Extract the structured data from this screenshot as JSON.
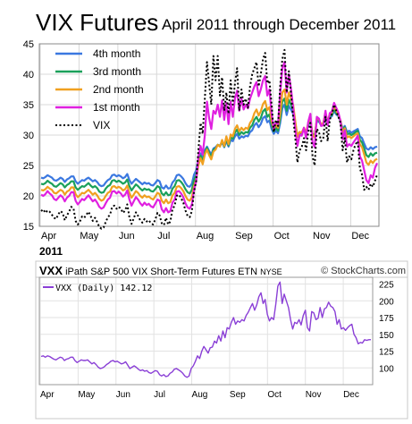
{
  "header": {
    "title": "VIX Futures",
    "subtitle": "April 2011 through December 2011"
  },
  "colors": {
    "fourth": "#3b78e0",
    "third": "#1aa05a",
    "second": "#f0a020",
    "first": "#e020e0",
    "vix": "#000000",
    "vxx": "#8a3fd6",
    "panel_border": "#c8c8c8"
  },
  "chart_data": [
    {
      "type": "line",
      "x_ticks": [
        "Apr",
        "May",
        "Jun",
        "Jul",
        "Aug",
        "Sep",
        "Oct",
        "Nov",
        "Dec"
      ],
      "year_label": "2011",
      "ylim": [
        15,
        45
      ],
      "y_ticks": [
        15,
        20,
        25,
        30,
        35,
        40,
        45
      ],
      "grid": true,
      "legend_position": "top-left",
      "series": [
        {
          "name": "4th month",
          "style": "solid",
          "values": [
            23.0,
            22.9,
            23.1,
            23.4,
            23.2,
            23.0,
            22.6,
            22.5,
            22.7,
            23.0,
            22.8,
            22.3,
            22.7,
            22.9,
            23.2,
            23.2,
            22.4,
            22.0,
            22.3,
            22.6,
            22.5,
            22.8,
            23.0,
            22.7,
            22.4,
            22.6,
            22.3,
            21.8,
            21.6,
            21.7,
            22.2,
            22.6,
            22.8,
            23.4,
            23.5,
            23.2,
            23.4,
            23.2,
            22.9,
            23.1,
            23.6,
            22.6,
            22.0,
            22.4,
            22.8,
            22.5,
            22.2,
            21.9,
            22.2,
            22.0,
            22.1,
            21.8,
            21.7,
            22.1,
            22.6,
            22.4,
            21.4,
            21.2,
            21.7,
            21.2,
            21.3,
            22.2,
            22.6,
            23.4,
            23.5,
            23.2,
            22.8,
            22.1,
            21.6,
            21.5,
            22.0,
            23.5,
            24.2,
            26.0,
            27.0,
            26.2,
            27.5,
            28.1,
            27.4,
            26.8,
            27.8,
            28.0,
            28.4,
            28.2,
            28.8,
            28.0,
            29.0,
            28.1,
            29.2,
            29.0,
            29.8,
            30.2,
            29.4,
            29.8,
            29.6,
            29.9,
            29.8,
            30.5,
            30.8,
            31.6,
            32.0,
            31.3,
            31.8,
            32.8,
            33.1,
            32.1,
            32.4,
            31.0,
            30.2,
            30.7,
            30.3,
            32.0,
            34.4,
            35.0,
            33.3,
            34.8,
            34.2,
            33.5,
            31.5,
            29.8,
            30.4,
            30.2,
            31.0,
            30.3,
            31.6,
            32.3,
            30.2,
            30.0,
            32.3,
            32.2,
            31.6,
            31.8,
            33.0,
            32.0,
            32.9,
            33.1,
            34.0,
            33.4,
            33.1,
            32.3,
            31.0,
            31.5,
            30.5,
            30.7,
            30.4,
            30.6,
            30.8,
            31.0,
            29.8,
            29.5,
            28.6,
            27.8,
            27.6,
            28.0,
            27.7,
            28.0,
            28.1
          ]
        },
        {
          "name": "3rd month",
          "style": "solid",
          "values": [
            22.0,
            21.9,
            22.1,
            22.5,
            22.2,
            22.0,
            21.6,
            21.5,
            21.8,
            22.1,
            21.9,
            21.4,
            21.8,
            22.0,
            22.4,
            22.4,
            21.4,
            21.0,
            21.3,
            21.6,
            21.5,
            21.8,
            22.1,
            21.7,
            21.4,
            21.6,
            21.3,
            20.7,
            20.5,
            20.6,
            21.2,
            21.6,
            21.8,
            22.5,
            22.6,
            22.3,
            22.5,
            22.3,
            22.0,
            22.2,
            22.7,
            21.6,
            20.9,
            21.4,
            21.9,
            21.6,
            21.2,
            20.9,
            21.2,
            21.0,
            21.1,
            20.8,
            20.7,
            21.1,
            21.6,
            21.4,
            20.4,
            20.1,
            20.6,
            20.1,
            20.2,
            21.2,
            21.6,
            22.5,
            22.6,
            22.3,
            21.8,
            21.1,
            20.6,
            20.4,
            21.0,
            22.6,
            23.4,
            25.5,
            26.6,
            25.7,
            27.2,
            27.9,
            27.1,
            26.4,
            27.6,
            27.8,
            28.4,
            28.2,
            29.0,
            28.1,
            29.4,
            28.3,
            29.6,
            29.4,
            30.4,
            30.9,
            30.0,
            30.5,
            30.2,
            30.5,
            30.4,
            31.2,
            31.6,
            32.5,
            33.0,
            32.2,
            32.8,
            33.9,
            34.3,
            33.0,
            33.4,
            31.6,
            30.6,
            31.2,
            30.7,
            32.7,
            35.5,
            36.0,
            34.0,
            35.8,
            35.0,
            34.2,
            31.9,
            29.8,
            30.5,
            30.3,
            31.1,
            30.4,
            31.8,
            32.6,
            30.1,
            29.8,
            32.5,
            32.4,
            31.6,
            31.9,
            33.3,
            32.0,
            33.1,
            33.3,
            34.3,
            33.6,
            33.2,
            32.3,
            30.7,
            31.3,
            30.1,
            30.3,
            30.0,
            30.2,
            30.5,
            30.7,
            29.2,
            28.8,
            27.8,
            26.7,
            26.4,
            27.0,
            26.6,
            27.0,
            27.1
          ]
        },
        {
          "name": "2nd month",
          "style": "solid",
          "values": [
            21.0,
            20.9,
            21.1,
            21.5,
            21.2,
            21.0,
            20.5,
            20.4,
            20.7,
            21.0,
            20.8,
            20.2,
            20.7,
            20.9,
            21.4,
            21.4,
            20.3,
            19.8,
            20.1,
            20.5,
            20.4,
            20.7,
            21.0,
            20.6,
            20.2,
            20.5,
            20.1,
            19.5,
            19.2,
            19.4,
            20.0,
            20.5,
            20.7,
            21.5,
            21.6,
            21.3,
            21.5,
            21.3,
            20.9,
            21.1,
            21.7,
            20.5,
            19.7,
            20.2,
            20.8,
            20.5,
            20.0,
            19.7,
            20.1,
            19.8,
            19.9,
            19.6,
            19.4,
            19.9,
            20.5,
            20.3,
            19.2,
            18.8,
            19.4,
            18.8,
            19.0,
            20.1,
            20.5,
            21.5,
            21.6,
            21.3,
            20.8,
            20.0,
            19.4,
            19.2,
            19.8,
            21.6,
            22.6,
            25.0,
            26.2,
            25.2,
            26.8,
            27.6,
            26.7,
            26.0,
            27.3,
            27.6,
            28.4,
            28.1,
            29.2,
            28.2,
            29.8,
            28.5,
            30.1,
            29.8,
            31.0,
            31.6,
            30.6,
            31.2,
            30.8,
            31.2,
            31.0,
            32.0,
            32.5,
            33.6,
            34.2,
            33.2,
            33.9,
            35.1,
            35.6,
            34.1,
            34.6,
            32.3,
            31.0,
            31.7,
            31.2,
            33.6,
            37.0,
            37.5,
            35.0,
            37.0,
            36.0,
            35.0,
            32.3,
            29.7,
            30.5,
            30.4,
            31.2,
            30.4,
            32.0,
            32.9,
            30.0,
            29.6,
            32.8,
            32.6,
            31.7,
            32.0,
            33.7,
            32.1,
            33.5,
            33.7,
            34.8,
            34.0,
            33.4,
            32.4,
            30.4,
            31.1,
            29.6,
            29.8,
            29.5,
            29.8,
            30.1,
            30.3,
            28.5,
            28.0,
            26.8,
            25.5,
            25.1,
            25.8,
            25.4,
            25.9,
            26.1
          ]
        },
        {
          "name": "1st month",
          "style": "solid",
          "values": [
            20.2,
            20.0,
            20.3,
            20.8,
            20.4,
            20.1,
            19.5,
            19.3,
            19.7,
            20.1,
            19.8,
            19.1,
            19.7,
            20.0,
            20.6,
            20.6,
            19.2,
            18.6,
            19.0,
            19.5,
            19.3,
            19.7,
            20.1,
            19.6,
            19.1,
            19.4,
            18.9,
            18.2,
            17.9,
            18.1,
            18.8,
            19.4,
            19.7,
            20.7,
            20.8,
            20.4,
            20.7,
            20.4,
            19.9,
            20.2,
            20.9,
            19.4,
            18.4,
            19.1,
            19.8,
            19.4,
            18.8,
            18.4,
            18.9,
            18.5,
            18.7,
            18.3,
            18.1,
            18.7,
            19.4,
            19.2,
            17.8,
            17.3,
            18.0,
            17.3,
            17.5,
            18.9,
            19.4,
            20.7,
            20.8,
            20.4,
            19.8,
            18.8,
            18.1,
            17.9,
            18.6,
            21.0,
            22.4,
            26.3,
            28.2,
            26.8,
            30.0,
            35.5,
            32.8,
            31.0,
            34.0,
            33.5,
            35.0,
            33.0,
            35.7,
            32.5,
            35.3,
            31.8,
            35.5,
            33.0,
            36.0,
            37.3,
            34.0,
            36.0,
            34.2,
            35.0,
            34.4,
            36.0,
            37.0,
            38.0,
            38.7,
            36.4,
            37.5,
            39.0,
            39.7,
            36.5,
            37.5,
            33.5,
            31.0,
            32.2,
            31.8,
            36.8,
            41.0,
            42.0,
            37.0,
            40.0,
            37.6,
            34.6,
            31.0,
            28.2,
            30.0,
            29.9,
            31.2,
            29.5,
            32.2,
            33.5,
            28.8,
            28.0,
            33.0,
            32.7,
            31.5,
            31.6,
            34.0,
            31.6,
            33.6,
            33.9,
            35.3,
            34.5,
            33.7,
            32.3,
            29.3,
            30.8,
            28.1,
            28.5,
            28.2,
            28.8,
            29.3,
            29.9,
            26.5,
            25.8,
            24.2,
            22.6,
            22.1,
            23.4,
            23.0,
            24.6,
            25.4
          ]
        },
        {
          "name": "VIX",
          "style": "dotted",
          "values": [
            17.5,
            17.8,
            17.2,
            17.6,
            17.4,
            16.9,
            16.4,
            16.2,
            17.0,
            17.5,
            17.2,
            16.0,
            16.8,
            17.4,
            18.2,
            18.0,
            15.9,
            15.3,
            15.8,
            16.6,
            16.4,
            16.9,
            17.4,
            16.7,
            15.9,
            16.4,
            15.7,
            14.9,
            14.6,
            14.8,
            15.7,
            16.5,
            16.9,
            18.2,
            18.4,
            17.9,
            18.2,
            17.9,
            17.2,
            17.6,
            18.6,
            16.5,
            15.4,
            16.3,
            17.3,
            16.7,
            16.0,
            15.6,
            16.2,
            15.8,
            16.0,
            15.5,
            15.3,
            16.1,
            17.2,
            16.8,
            15.5,
            15.2,
            16.4,
            15.3,
            15.8,
            17.8,
            18.4,
            20.0,
            20.2,
            19.6,
            18.9,
            17.6,
            16.7,
            16.5,
            17.5,
            20.7,
            22.4,
            27.4,
            32.0,
            30.2,
            36.0,
            42.0,
            38.5,
            35.0,
            43.0,
            39.0,
            43.0,
            36.5,
            39.5,
            34.0,
            37.0,
            33.5,
            39.0,
            35.0,
            38.5,
            41.0,
            34.0,
            37.5,
            35.0,
            36.0,
            34.5,
            38.0,
            40.0,
            41.0,
            42.0,
            38.0,
            40.0,
            42.5,
            43.5,
            38.5,
            39.0,
            35.0,
            30.5,
            32.5,
            31.5,
            38.0,
            42.5,
            44.0,
            37.0,
            40.5,
            36.8,
            33.0,
            29.5,
            25.5,
            27.5,
            28.0,
            29.5,
            27.5,
            30.5,
            32.0,
            26.5,
            25.0,
            31.0,
            30.5,
            29.0,
            29.5,
            33.0,
            29.0,
            32.5,
            33.5,
            35.0,
            34.0,
            33.0,
            32.0,
            27.5,
            29.5,
            25.5,
            26.5,
            26.0,
            27.5,
            28.5,
            29.0,
            24.5,
            23.5,
            21.0,
            21.5,
            21.0,
            22.0,
            21.5,
            22.5,
            23.5
          ]
        }
      ]
    },
    {
      "type": "line",
      "ticker": "VXX",
      "description": "iPath S&P 500 VIX Short-Term Futures ETN",
      "exchange": "NYSE",
      "source": "© StockCharts.com",
      "legend_label": "VXX (Daily) 142.12",
      "x_ticks": [
        "Apr",
        "May",
        "Jun",
        "Jul",
        "Aug",
        "Sep",
        "Oct",
        "Nov",
        "Dec"
      ],
      "ylim": [
        75,
        235
      ],
      "y_ticks": [
        100,
        125,
        150,
        175,
        200,
        225
      ],
      "grid": true,
      "series": [
        {
          "name": "VXX (Daily)",
          "values": [
            117,
            118,
            116,
            118,
            117,
            115,
            113,
            112,
            114,
            116,
            115,
            111,
            113,
            114,
            116,
            116,
            111,
            108,
            110,
            112,
            111,
            111,
            112,
            109,
            106,
            108,
            105,
            101,
            99,
            100,
            102,
            105,
            107,
            110,
            111,
            109,
            110,
            108,
            106,
            107,
            109,
            104,
            99,
            101,
            103,
            101,
            98,
            96,
            97,
            95,
            96,
            93,
            92,
            94,
            96,
            95,
            90,
            88,
            90,
            87,
            88,
            92,
            94,
            98,
            99,
            97,
            95,
            92,
            88,
            86,
            88,
            99,
            103,
            110,
            118,
            114,
            125,
            132,
            127,
            122,
            130,
            131,
            140,
            137,
            148,
            140,
            155,
            145,
            160,
            158,
            168,
            175,
            165,
            170,
            168,
            172,
            170,
            178,
            183,
            190,
            196,
            186,
            194,
            206,
            212,
            196,
            202,
            180,
            170,
            175,
            172,
            195,
            222,
            228,
            196,
            210,
            200,
            190,
            172,
            158,
            168,
            166,
            172,
            164,
            178,
            186,
            160,
            155,
            184,
            182,
            172,
            174,
            190,
            175,
            188,
            190,
            198,
            192,
            190,
            184,
            165,
            172,
            158,
            160,
            156,
            160,
            163,
            165,
            150,
            145,
            136,
            138,
            137,
            142,
            141,
            142,
            142.12
          ]
        }
      ]
    }
  ]
}
